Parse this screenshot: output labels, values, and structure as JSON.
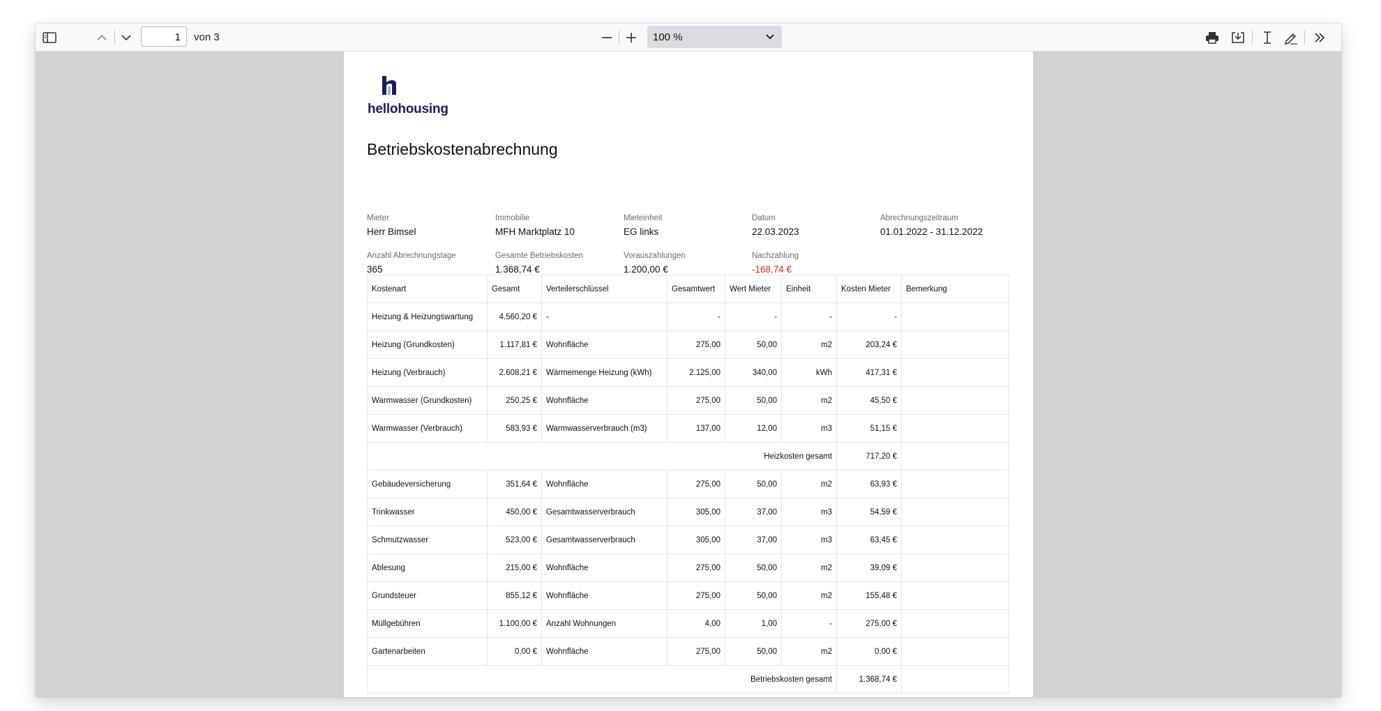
{
  "toolbar": {
    "page_current": "1",
    "page_of": "von 3",
    "zoom": "100 %",
    "icons": [
      "sidebar-toggle-icon",
      "chevron-up-icon",
      "chevron-down-icon",
      "zoom-out-icon",
      "zoom-in-icon",
      "printer-icon",
      "download-icon",
      "text-cursor-icon",
      "draw-pen-icon",
      "double-chevron-right-icon"
    ]
  },
  "document": {
    "logo_text": "hellohousing",
    "title": "Betriebskostenabrechnung",
    "brand_color": "#1b1d5c",
    "meta": [
      {
        "label": "Mieter",
        "value": "Herr Bimsel"
      },
      {
        "label": "Immobilie",
        "value": "MFH Marktplatz 10"
      },
      {
        "label": "Mieteinheit",
        "value": "EG links"
      },
      {
        "label": "Datum",
        "value": "22.03.2023"
      },
      {
        "label": "Abrechnungszeitraum",
        "value": "01.01.2022 - 31.12.2022"
      },
      {
        "label": "Anzahl Abrechnungstage",
        "value": "365"
      },
      {
        "label": "Gesamte Betriebskosten",
        "value": "1.368,74 €"
      },
      {
        "label": "Vorauszahlungen",
        "value": "1.200,00 €"
      },
      {
        "label": "Nachzahlung",
        "value": "-168,74 €"
      }
    ],
    "nachzahlung_color": "#e2251c",
    "table": {
      "headers": [
        "Kostenart",
        "Gesamt",
        "Verteilerschlüssel",
        "Gesamtwert",
        "Wert Mieter",
        "Einheit",
        "Kosten Mieter",
        "Bemerkung"
      ],
      "rows": [
        [
          "Heizung & Heizungswartung",
          "4.560,20 €",
          "-",
          "-",
          "-",
          "-",
          "-",
          ""
        ],
        [
          "Heizung (Grundkosten)",
          "1.117,81 €",
          "Wohnfläche",
          "275,00",
          "50,00",
          "m2",
          "203,24 €",
          ""
        ],
        [
          "Heizung (Verbrauch)",
          "2.608,21 €",
          "Wärmemenge Heizung (kWh)",
          "2.125,00",
          "340,00",
          "kWh",
          "417,31 €",
          ""
        ],
        [
          "Warmwasser (Grundkosten)",
          "250,25 €",
          "Wohnfläche",
          "275,00",
          "50,00",
          "m2",
          "45,50 €",
          ""
        ],
        [
          "Warmwasser (Verbrauch)",
          "583,93 €",
          "Warmwasserverbrauch (m3)",
          "137,00",
          "12,00",
          "m3",
          "51,15 €",
          ""
        ],
        {
          "subtotal_label": "Heizkosten gesamt",
          "subtotal_value": "717,20 €"
        },
        [
          "Gebäudeversicherung",
          "351,64 €",
          "Wohnfläche",
          "275,00",
          "50,00",
          "m2",
          "63,93 €",
          ""
        ],
        [
          "Trinkwasser",
          "450,00 €",
          "Gesamtwasserverbrauch",
          "305,00",
          "37,00",
          "m3",
          "54,59 €",
          ""
        ],
        [
          "Schmutzwasser",
          "523,00 €",
          "Gesamtwasserverbrauch",
          "305,00",
          "37,00",
          "m3",
          "63,45 €",
          ""
        ],
        [
          "Ablesung",
          "215,00 €",
          "Wohnfläche",
          "275,00",
          "50,00",
          "m2",
          "39,09 €",
          ""
        ],
        [
          "Grundsteuer",
          "855,12 €",
          "Wohnfläche",
          "275,00",
          "50,00",
          "m2",
          "155,48 €",
          ""
        ],
        [
          "Müllgebühren",
          "1.100,00 €",
          "Anzahl Wohnungen",
          "4,00",
          "1,00",
          "-",
          "275,00 €",
          ""
        ],
        [
          "Gartenarbeiten",
          "0,00 €",
          "Wohnfläche",
          "275,00",
          "50,00",
          "m2",
          "0,00 €",
          ""
        ],
        {
          "subtotal_label": "Betriebskosten gesamt",
          "subtotal_value": "1.368,74 €"
        }
      ]
    }
  }
}
